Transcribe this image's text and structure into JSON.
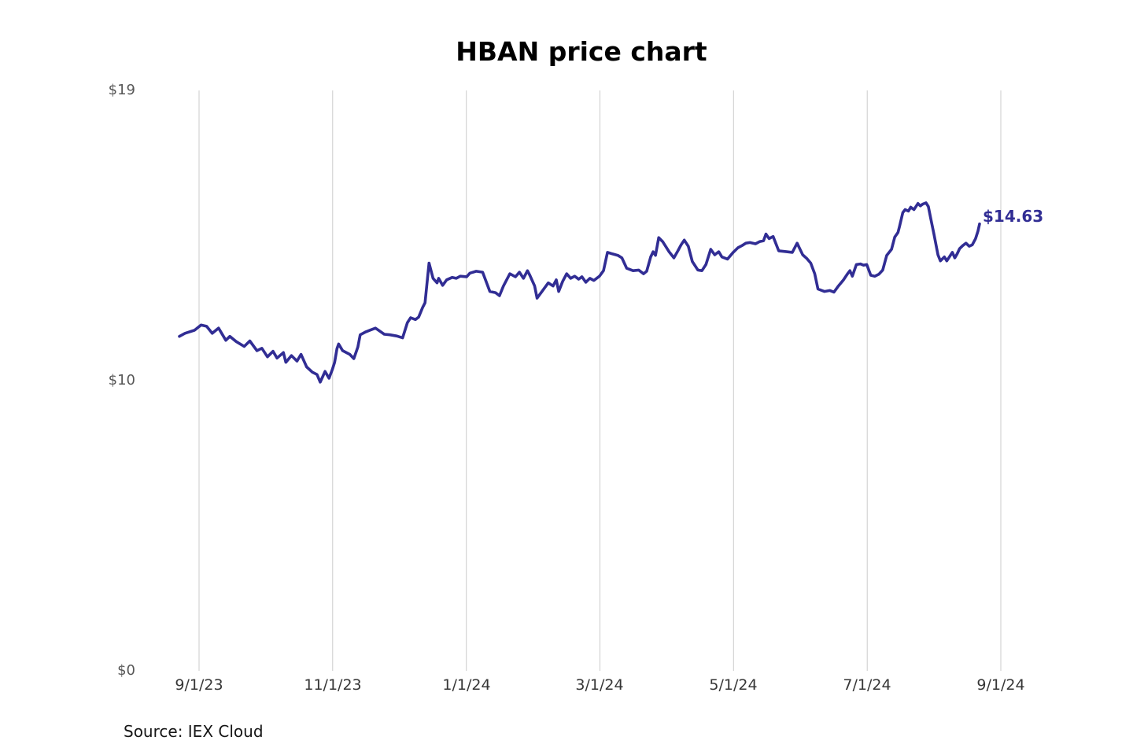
{
  "page": {
    "background": "#ffffff"
  },
  "chart_data": {
    "type": "line",
    "title": "HBAN price chart",
    "source": "Source: IEX Cloud",
    "end_label": "$14.63",
    "end_value": 14.63,
    "x_ticks": [
      "9/1/23",
      "11/1/23",
      "1/1/24",
      "3/1/24",
      "5/1/24",
      "7/1/24",
      "9/1/24"
    ],
    "y_ticks": [
      "$19",
      "$10",
      "$0"
    ],
    "ylim": [
      0,
      19
    ],
    "grid": "vertical",
    "grid_color": "#cbcbcb",
    "line_color": "#312d94",
    "legend": "none",
    "series": [
      {
        "name": "HBAN",
        "points": [
          [
            0.0,
            10.95
          ],
          [
            0.007,
            11.05
          ],
          [
            0.019,
            11.15
          ],
          [
            0.027,
            11.32
          ],
          [
            0.034,
            11.28
          ],
          [
            0.041,
            11.05
          ],
          [
            0.049,
            11.22
          ],
          [
            0.058,
            10.82
          ],
          [
            0.063,
            10.95
          ],
          [
            0.071,
            10.78
          ],
          [
            0.081,
            10.62
          ],
          [
            0.088,
            10.8
          ],
          [
            0.097,
            10.48
          ],
          [
            0.103,
            10.56
          ],
          [
            0.11,
            10.28
          ],
          [
            0.117,
            10.46
          ],
          [
            0.122,
            10.24
          ],
          [
            0.13,
            10.42
          ],
          [
            0.133,
            10.1
          ],
          [
            0.14,
            10.32
          ],
          [
            0.147,
            10.14
          ],
          [
            0.152,
            10.36
          ],
          [
            0.159,
            9.95
          ],
          [
            0.166,
            9.78
          ],
          [
            0.172,
            9.7
          ],
          [
            0.176,
            9.45
          ],
          [
            0.179,
            9.62
          ],
          [
            0.182,
            9.8
          ],
          [
            0.187,
            9.58
          ],
          [
            0.191,
            9.85
          ],
          [
            0.194,
            10.1
          ],
          [
            0.197,
            10.55
          ],
          [
            0.199,
            10.7
          ],
          [
            0.204,
            10.48
          ],
          [
            0.213,
            10.36
          ],
          [
            0.218,
            10.22
          ],
          [
            0.223,
            10.6
          ],
          [
            0.226,
            11.0
          ],
          [
            0.233,
            11.1
          ],
          [
            0.238,
            11.15
          ],
          [
            0.245,
            11.22
          ],
          [
            0.256,
            11.02
          ],
          [
            0.263,
            11.0
          ],
          [
            0.272,
            10.96
          ],
          [
            0.279,
            10.9
          ],
          [
            0.285,
            11.4
          ],
          [
            0.289,
            11.56
          ],
          [
            0.295,
            11.5
          ],
          [
            0.299,
            11.58
          ],
          [
            0.304,
            11.9
          ],
          [
            0.307,
            12.05
          ],
          [
            0.312,
            13.35
          ],
          [
            0.317,
            12.85
          ],
          [
            0.322,
            12.7
          ],
          [
            0.324,
            12.85
          ],
          [
            0.329,
            12.62
          ],
          [
            0.334,
            12.8
          ],
          [
            0.341,
            12.88
          ],
          [
            0.346,
            12.85
          ],
          [
            0.351,
            12.92
          ],
          [
            0.359,
            12.9
          ],
          [
            0.363,
            13.02
          ],
          [
            0.371,
            13.08
          ],
          [
            0.379,
            13.05
          ],
          [
            0.388,
            12.42
          ],
          [
            0.395,
            12.38
          ],
          [
            0.4,
            12.28
          ],
          [
            0.405,
            12.6
          ],
          [
            0.413,
            13.0
          ],
          [
            0.42,
            12.9
          ],
          [
            0.425,
            13.05
          ],
          [
            0.43,
            12.85
          ],
          [
            0.435,
            13.1
          ],
          [
            0.438,
            12.95
          ],
          [
            0.444,
            12.6
          ],
          [
            0.447,
            12.2
          ],
          [
            0.454,
            12.45
          ],
          [
            0.461,
            12.7
          ],
          [
            0.467,
            12.6
          ],
          [
            0.471,
            12.8
          ],
          [
            0.474,
            12.42
          ],
          [
            0.479,
            12.75
          ],
          [
            0.484,
            13.0
          ],
          [
            0.489,
            12.85
          ],
          [
            0.494,
            12.92
          ],
          [
            0.499,
            12.82
          ],
          [
            0.503,
            12.9
          ],
          [
            0.508,
            12.72
          ],
          [
            0.513,
            12.85
          ],
          [
            0.518,
            12.78
          ],
          [
            0.525,
            12.92
          ],
          [
            0.53,
            13.1
          ],
          [
            0.535,
            13.7
          ],
          [
            0.541,
            13.65
          ],
          [
            0.548,
            13.6
          ],
          [
            0.553,
            13.52
          ],
          [
            0.559,
            13.18
          ],
          [
            0.567,
            13.1
          ],
          [
            0.574,
            13.12
          ],
          [
            0.58,
            13.0
          ],
          [
            0.584,
            13.08
          ],
          [
            0.589,
            13.55
          ],
          [
            0.592,
            13.72
          ],
          [
            0.595,
            13.6
          ],
          [
            0.599,
            14.18
          ],
          [
            0.604,
            14.05
          ],
          [
            0.612,
            13.72
          ],
          [
            0.618,
            13.52
          ],
          [
            0.623,
            13.75
          ],
          [
            0.627,
            13.95
          ],
          [
            0.631,
            14.1
          ],
          [
            0.636,
            13.9
          ],
          [
            0.641,
            13.4
          ],
          [
            0.648,
            13.12
          ],
          [
            0.653,
            13.1
          ],
          [
            0.658,
            13.3
          ],
          [
            0.664,
            13.8
          ],
          [
            0.669,
            13.62
          ],
          [
            0.674,
            13.72
          ],
          [
            0.678,
            13.55
          ],
          [
            0.685,
            13.48
          ],
          [
            0.692,
            13.7
          ],
          [
            0.698,
            13.85
          ],
          [
            0.703,
            13.92
          ],
          [
            0.708,
            14.0
          ],
          [
            0.713,
            14.02
          ],
          [
            0.72,
            13.98
          ],
          [
            0.725,
            14.05
          ],
          [
            0.73,
            14.08
          ],
          [
            0.733,
            14.3
          ],
          [
            0.737,
            14.15
          ],
          [
            0.742,
            14.22
          ],
          [
            0.749,
            13.75
          ],
          [
            0.759,
            13.72
          ],
          [
            0.766,
            13.7
          ],
          [
            0.772,
            14.0
          ],
          [
            0.779,
            13.62
          ],
          [
            0.784,
            13.5
          ],
          [
            0.789,
            13.35
          ],
          [
            0.794,
            13.0
          ],
          [
            0.798,
            12.5
          ],
          [
            0.806,
            12.42
          ],
          [
            0.813,
            12.45
          ],
          [
            0.818,
            12.4
          ],
          [
            0.823,
            12.58
          ],
          [
            0.83,
            12.8
          ],
          [
            0.835,
            13.0
          ],
          [
            0.838,
            13.1
          ],
          [
            0.841,
            12.92
          ],
          [
            0.846,
            13.3
          ],
          [
            0.851,
            13.32
          ],
          [
            0.855,
            13.28
          ],
          [
            0.859,
            13.3
          ],
          [
            0.864,
            12.95
          ],
          [
            0.869,
            12.92
          ],
          [
            0.874,
            12.98
          ],
          [
            0.879,
            13.12
          ],
          [
            0.884,
            13.6
          ],
          [
            0.89,
            13.8
          ],
          [
            0.894,
            14.2
          ],
          [
            0.898,
            14.35
          ],
          [
            0.9,
            14.55
          ],
          [
            0.904,
            15.0
          ],
          [
            0.907,
            15.1
          ],
          [
            0.911,
            15.05
          ],
          [
            0.914,
            15.18
          ],
          [
            0.918,
            15.1
          ],
          [
            0.923,
            15.3
          ],
          [
            0.926,
            15.22
          ],
          [
            0.929,
            15.28
          ],
          [
            0.933,
            15.32
          ],
          [
            0.936,
            15.2
          ],
          [
            0.939,
            14.8
          ],
          [
            0.943,
            14.3
          ],
          [
            0.948,
            13.62
          ],
          [
            0.951,
            13.42
          ],
          [
            0.956,
            13.55
          ],
          [
            0.959,
            13.42
          ],
          [
            0.963,
            13.58
          ],
          [
            0.966,
            13.7
          ],
          [
            0.969,
            13.52
          ],
          [
            0.972,
            13.65
          ],
          [
            0.975,
            13.82
          ],
          [
            0.979,
            13.92
          ],
          [
            0.983,
            14.0
          ],
          [
            0.987,
            13.9
          ],
          [
            0.991,
            13.95
          ],
          [
            0.995,
            14.15
          ],
          [
            0.998,
            14.4
          ],
          [
            1.0,
            14.63
          ]
        ]
      }
    ]
  }
}
